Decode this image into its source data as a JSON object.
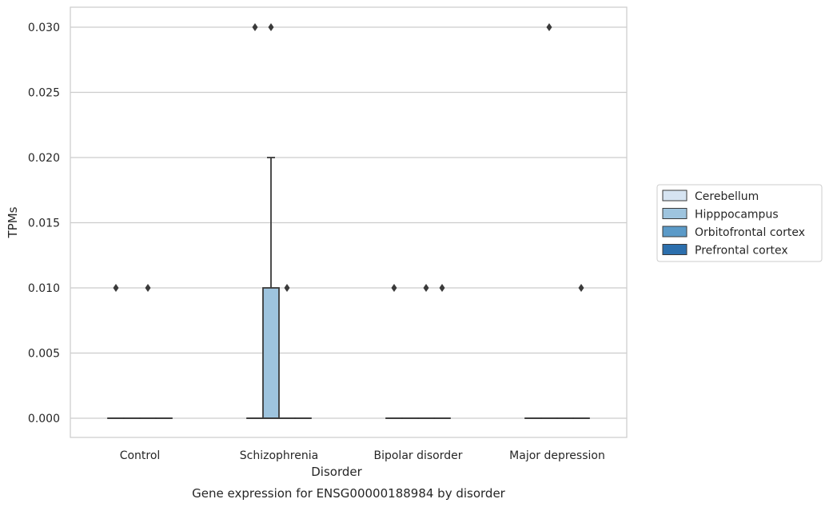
{
  "chart_data": {
    "type": "box",
    "xlabel": "Disorder",
    "ylabel": "TPMs",
    "caption": "Gene expression for ENSG00000188984 by disorder",
    "ylim": [
      -0.0015,
      0.0315
    ],
    "yticks": [
      "0.000",
      "0.005",
      "0.010",
      "0.015",
      "0.020",
      "0.025",
      "0.030"
    ],
    "ytick_values": [
      0,
      0.005,
      0.01,
      0.015,
      0.02,
      0.025,
      0.03
    ],
    "grid": "y",
    "legend_position": "right",
    "categories": [
      "Control",
      "Schizophrenia",
      "Bipolar disorder",
      "Major depression"
    ],
    "series": [
      {
        "name": "Cerebellum",
        "color": "#d6e4f2",
        "boxes": [
          {
            "q1": 0,
            "median": 0,
            "q3": 0,
            "whisker_low": 0,
            "whisker_high": 0,
            "outliers": [
              0.01
            ]
          },
          {
            "q1": 0,
            "median": 0,
            "q3": 0,
            "whisker_low": 0,
            "whisker_high": 0,
            "outliers": [
              0.03
            ]
          },
          {
            "q1": 0,
            "median": 0,
            "q3": 0,
            "whisker_low": 0,
            "whisker_high": 0,
            "outliers": [
              0.01
            ]
          },
          {
            "q1": 0,
            "median": 0,
            "q3": 0,
            "whisker_low": 0,
            "whisker_high": 0,
            "outliers": []
          }
        ]
      },
      {
        "name": "Hipppocampus",
        "color": "#9ec4de",
        "boxes": [
          {
            "q1": 0,
            "median": 0,
            "q3": 0,
            "whisker_low": 0,
            "whisker_high": 0,
            "outliers": []
          },
          {
            "q1": 0,
            "median": 0,
            "q3": 0.01,
            "whisker_low": 0,
            "whisker_high": 0.02,
            "outliers": [
              0.03
            ]
          },
          {
            "q1": 0,
            "median": 0,
            "q3": 0,
            "whisker_low": 0,
            "whisker_high": 0,
            "outliers": []
          },
          {
            "q1": 0,
            "median": 0,
            "q3": 0,
            "whisker_low": 0,
            "whisker_high": 0,
            "outliers": [
              0.03
            ]
          }
        ]
      },
      {
        "name": "Orbitofrontal cortex",
        "color": "#5b9ac8",
        "boxes": [
          {
            "q1": 0,
            "median": 0,
            "q3": 0,
            "whisker_low": 0,
            "whisker_high": 0,
            "outliers": [
              0.01
            ]
          },
          {
            "q1": 0,
            "median": 0,
            "q3": 0,
            "whisker_low": 0,
            "whisker_high": 0,
            "outliers": [
              0.01
            ]
          },
          {
            "q1": 0,
            "median": 0,
            "q3": 0,
            "whisker_low": 0,
            "whisker_high": 0,
            "outliers": [
              0.01
            ]
          },
          {
            "q1": 0,
            "median": 0,
            "q3": 0,
            "whisker_low": 0,
            "whisker_high": 0,
            "outliers": []
          }
        ]
      },
      {
        "name": "Prefrontal cortex",
        "color": "#2c6fad",
        "boxes": [
          {
            "q1": 0,
            "median": 0,
            "q3": 0,
            "whisker_low": 0,
            "whisker_high": 0,
            "outliers": []
          },
          {
            "q1": 0,
            "median": 0,
            "q3": 0,
            "whisker_low": 0,
            "whisker_high": 0,
            "outliers": []
          },
          {
            "q1": 0,
            "median": 0,
            "q3": 0,
            "whisker_low": 0,
            "whisker_high": 0,
            "outliers": [
              0.01
            ]
          },
          {
            "q1": 0,
            "median": 0,
            "q3": 0,
            "whisker_low": 0,
            "whisker_high": 0,
            "outliers": [
              0.01
            ]
          }
        ]
      }
    ]
  }
}
